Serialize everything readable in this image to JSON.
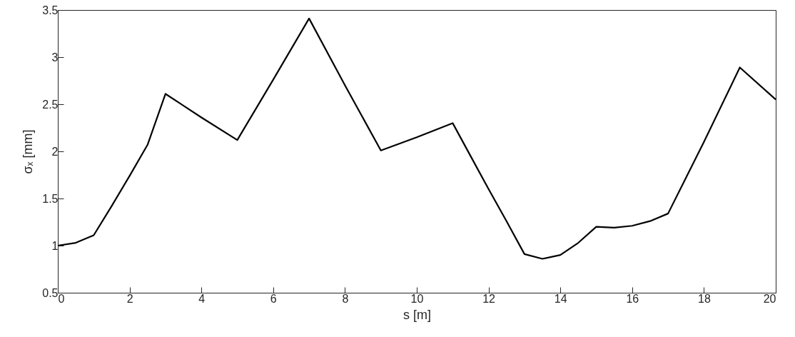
{
  "chart_data": {
    "type": "line",
    "xlabel": "s [m]",
    "ylabel": "σₓ [mm]",
    "series": [
      {
        "color": "#000000",
        "x": [
          0,
          0.5,
          1,
          1.5,
          2,
          2.5,
          3,
          4,
          5,
          6,
          7,
          8,
          9,
          10,
          11,
          11.5,
          12,
          12.5,
          13,
          13.5,
          14,
          14.5,
          15,
          15.5,
          16,
          16.5,
          17,
          18,
          19,
          20
        ],
        "values": [
          1.0,
          1.03,
          1.11,
          1.42,
          1.74,
          2.07,
          2.61,
          2.36,
          2.12,
          2.76,
          3.41,
          2.7,
          2.01,
          2.15,
          2.3,
          1.95,
          1.6,
          1.26,
          0.91,
          0.86,
          0.9,
          1.03,
          1.2,
          1.19,
          1.21,
          1.26,
          1.34,
          2.1,
          2.89,
          2.55
        ]
      }
    ],
    "xlim": [
      0,
      20
    ],
    "xticks": [
      0,
      2,
      4,
      6,
      8,
      10,
      12,
      14,
      16,
      18,
      20
    ],
    "ylim": [
      0.5,
      3.5
    ],
    "yticks": [
      0.5,
      1,
      1.5,
      2,
      2.5,
      3,
      3.5
    ],
    "grid": false,
    "marker": "none",
    "line_style": "solid"
  }
}
